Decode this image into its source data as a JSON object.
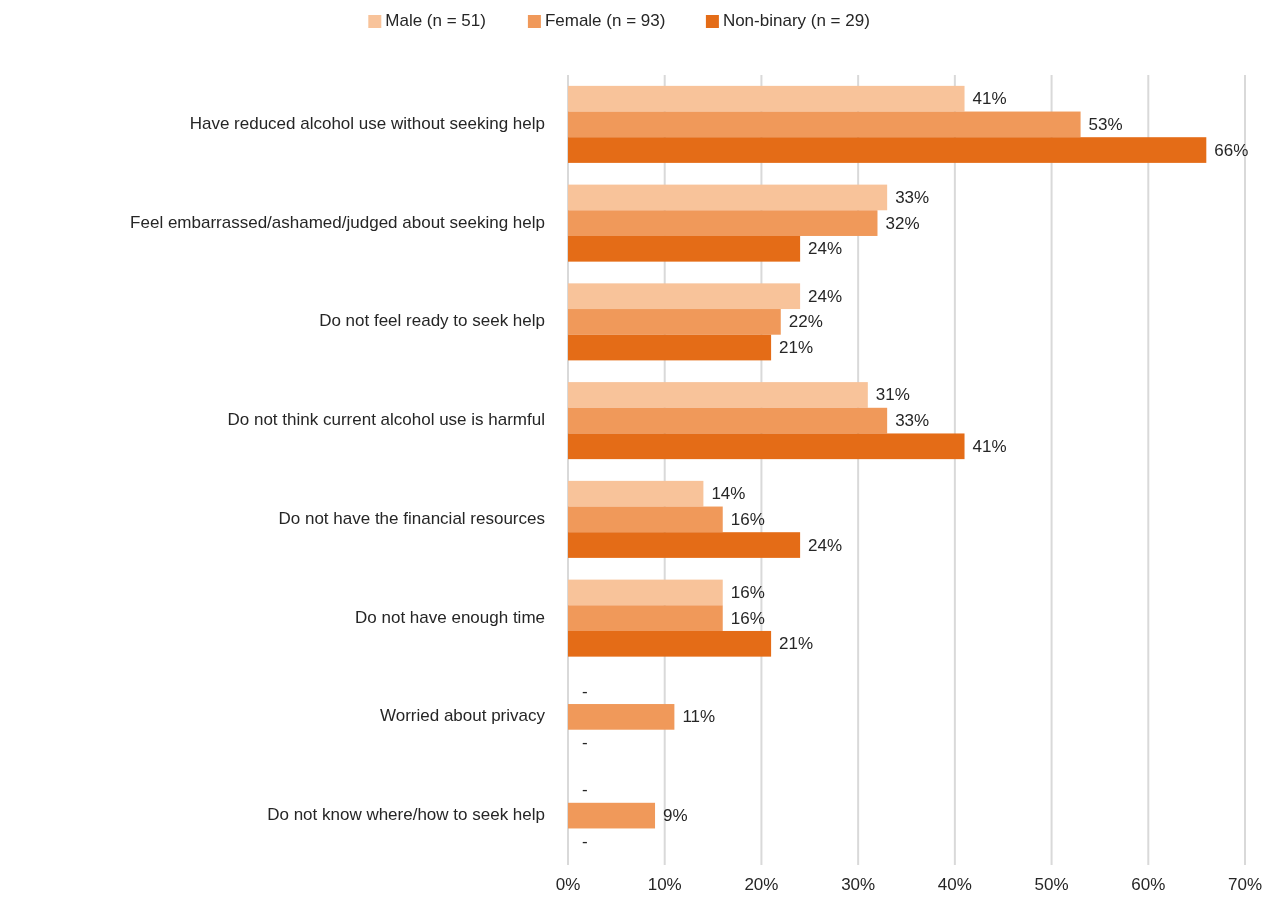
{
  "chart_data": {
    "type": "bar",
    "orientation": "horizontal",
    "categories": [
      "Have reduced alcohol use without seeking help",
      "Feel embarrassed/ashamed/judged about seeking help",
      "Do not feel ready to seek help",
      "Do not think current alcohol use is harmful",
      "Do not have the financial resources",
      "Do not have enough time",
      "Worried about privacy",
      "Do not know where/how to seek help"
    ],
    "series": [
      {
        "name": "Male (n = 51)",
        "color": "#f8c39a",
        "values": [
          41,
          33,
          24,
          31,
          14,
          16,
          null,
          null
        ],
        "value_labels": [
          "41%",
          "33%",
          "24%",
          "31%",
          "14%",
          "16%",
          "-",
          "-"
        ]
      },
      {
        "name": "Female (n = 93)",
        "color": "#f0995a",
        "values": [
          53,
          32,
          22,
          33,
          16,
          16,
          11,
          9
        ],
        "value_labels": [
          "53%",
          "32%",
          "22%",
          "33%",
          "16%",
          "16%",
          "11%",
          "9%"
        ]
      },
      {
        "name": "Non-binary (n = 29)",
        "color": "#e46c17",
        "values": [
          66,
          24,
          21,
          41,
          24,
          21,
          null,
          null
        ],
        "value_labels": [
          "66%",
          "24%",
          "21%",
          "41%",
          "24%",
          "21%",
          "-",
          "-"
        ]
      }
    ],
    "xlim": [
      0,
      70
    ],
    "xticks": [
      {
        "value": 0,
        "label": "0%"
      },
      {
        "value": 10,
        "label": "10%"
      },
      {
        "value": 20,
        "label": "20%"
      },
      {
        "value": 30,
        "label": "30%"
      },
      {
        "value": 40,
        "label": "40%"
      },
      {
        "value": 50,
        "label": "50%"
      },
      {
        "value": 60,
        "label": "60%"
      },
      {
        "value": 70,
        "label": "70%"
      }
    ],
    "grid": "x",
    "legend": "top"
  }
}
